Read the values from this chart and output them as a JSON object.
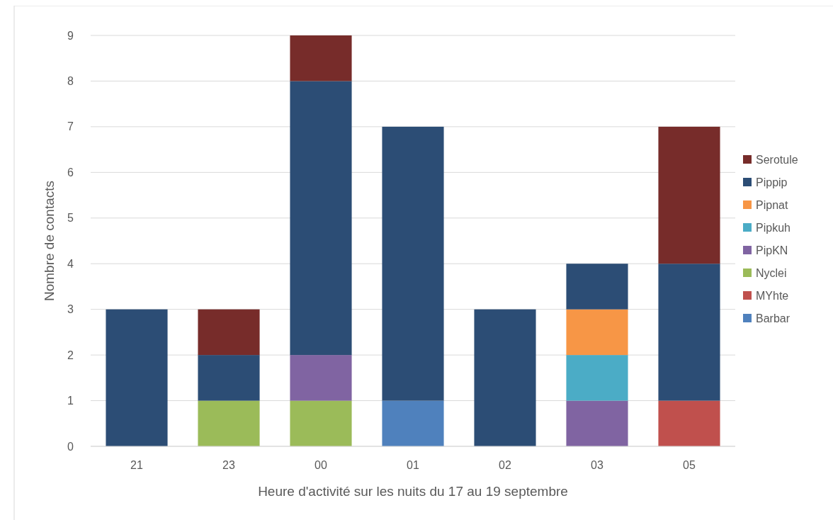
{
  "chart_data": {
    "type": "bar",
    "stacked": true,
    "xlabel": "Heure d'activité sur les nuits du 17 au 19 septembre",
    "ylabel": "Nombre de contacts",
    "categories": [
      "21",
      "23",
      "00",
      "01",
      "02",
      "03",
      "05"
    ],
    "series": [
      {
        "name": "Barbar",
        "color": "#4f81bd",
        "values": [
          null,
          null,
          null,
          1,
          null,
          null,
          null
        ]
      },
      {
        "name": "MYhte",
        "color": "#c0504d",
        "values": [
          null,
          null,
          null,
          null,
          null,
          null,
          1
        ]
      },
      {
        "name": "Nyclei",
        "color": "#9bbb59",
        "values": [
          null,
          1,
          1,
          null,
          null,
          null,
          null
        ]
      },
      {
        "name": "PipKN",
        "color": "#8064a2",
        "values": [
          null,
          null,
          1,
          null,
          null,
          1,
          null
        ]
      },
      {
        "name": "Pipkuh",
        "color": "#4bacc6",
        "values": [
          null,
          null,
          null,
          null,
          null,
          1,
          null
        ]
      },
      {
        "name": "Pipnat",
        "color": "#f79646",
        "values": [
          null,
          null,
          null,
          null,
          null,
          1,
          null
        ]
      },
      {
        "name": "Pippip",
        "color": "#2c4d75",
        "values": [
          3,
          1,
          6,
          6,
          3,
          1,
          3
        ]
      },
      {
        "name": "Serotule",
        "color": "#772c2a",
        "values": [
          null,
          1,
          1,
          null,
          null,
          null,
          3
        ]
      }
    ],
    "ylim": [
      0,
      9
    ],
    "yticks": [
      0,
      1,
      2,
      3,
      4,
      5,
      6,
      7,
      8,
      9
    ],
    "grid": "y",
    "legend": "right"
  }
}
